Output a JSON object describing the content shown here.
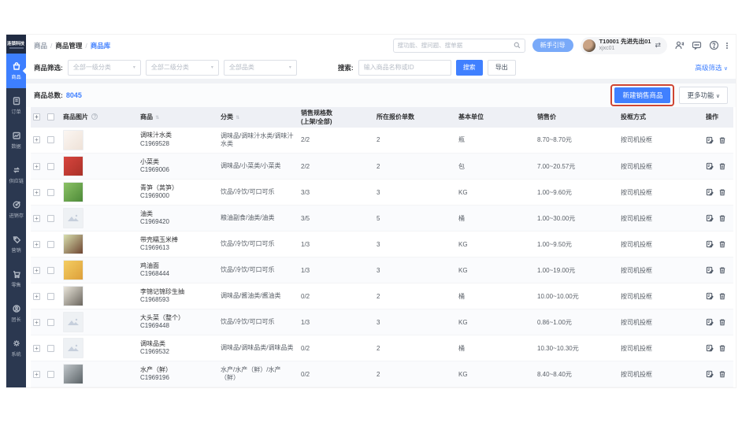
{
  "brand": {
    "name": "连锁科技"
  },
  "sidebar": {
    "items": [
      {
        "icon": "bag-icon",
        "label": "商品",
        "active": true
      },
      {
        "icon": "order-icon",
        "label": "订单",
        "active": false
      },
      {
        "icon": "data-icon",
        "label": "数据",
        "active": false
      },
      {
        "icon": "supply-icon",
        "label": "供应链",
        "active": false
      },
      {
        "icon": "stock-icon",
        "label": "进销存",
        "active": false
      },
      {
        "icon": "tag-icon",
        "label": "营销",
        "active": false
      },
      {
        "icon": "cart-icon",
        "label": "零售",
        "active": false
      },
      {
        "icon": "person-icon",
        "label": "团长",
        "active": false
      },
      {
        "icon": "gear-icon",
        "label": "系统",
        "active": false
      }
    ]
  },
  "breadcrumb": {
    "items": [
      "商品",
      "商品管理",
      "商品库"
    ]
  },
  "topbar": {
    "search_placeholder": "搜功能、搜问题、搜单据",
    "guide_button": "新手引导",
    "user": {
      "name": "T10001 先进先出01",
      "account": "xjxc01"
    }
  },
  "filters": {
    "label": "商品筛选:",
    "selects": [
      "全部一级分类",
      "全部二级分类",
      "全部品类"
    ],
    "search_label": "搜索:",
    "search_placeholder": "输入商品名称或ID",
    "search_button": "搜索",
    "export_button": "导出",
    "advanced_link": "高级筛选"
  },
  "summary": {
    "total_label": "商品总数:",
    "total": "8045",
    "create_button": "新建销售商品",
    "more_button": "更多功能"
  },
  "table": {
    "columns": {
      "image": "商品图片",
      "product": "商品",
      "category": "分类",
      "specs_line1": "销售规格数",
      "specs_line2": "(上架/全部)",
      "quotes": "所在报价单数",
      "unit": "基本单位",
      "price": "销售价",
      "basket": "投框方式",
      "ops": "操作"
    },
    "rows": [
      {
        "name": "调味汁水类",
        "code": "C1969528",
        "category": "调味品/调味汁水类/调味汁水类",
        "specs": "2/2",
        "quotes": "2",
        "unit": "瓶",
        "price": "8.70~8.70元",
        "basket": "按司机投框",
        "thumb": {
          "kind": "photo",
          "c1": "#fbf6f2",
          "c2": "#efe2d8"
        }
      },
      {
        "name": "小菜类",
        "code": "C1969006",
        "category": "调味品/小菜类/小菜类",
        "specs": "2/2",
        "quotes": "2",
        "unit": "包",
        "price": "7.00~20.57元",
        "basket": "按司机投框",
        "thumb": {
          "kind": "photo",
          "c1": "#d8453e",
          "c2": "#a93229"
        }
      },
      {
        "name": "青笋（莴笋）",
        "code": "C1969000",
        "category": "饮品/冷饮/可口可乐",
        "specs": "3/3",
        "quotes": "3",
        "unit": "KG",
        "price": "1.00~9.60元",
        "basket": "按司机投框",
        "thumb": {
          "kind": "photo",
          "c1": "#8cc266",
          "c2": "#4d8a38"
        }
      },
      {
        "name": "油类",
        "code": "C1969420",
        "category": "粮油副食/油类/油类",
        "specs": "3/5",
        "quotes": "5",
        "unit": "桶",
        "price": "1.00~30.00元",
        "basket": "按司机投框",
        "thumb": {
          "kind": "placeholder"
        }
      },
      {
        "name": "带壳糯玉米棒",
        "code": "C1969613",
        "category": "饮品/冷饮/可口可乐",
        "specs": "1/3",
        "quotes": "3",
        "unit": "KG",
        "price": "1.00~9.50元",
        "basket": "按司机投框",
        "thumb": {
          "kind": "photo",
          "c1": "#d8dfae",
          "c2": "#6f4632"
        }
      },
      {
        "name": "鸡油面",
        "code": "C1968444",
        "category": "饮品/冷饮/可口可乐",
        "specs": "1/3",
        "quotes": "3",
        "unit": "KG",
        "price": "1.00~19.00元",
        "basket": "按司机投框",
        "thumb": {
          "kind": "photo",
          "c1": "#f4ce62",
          "c2": "#dd9f3a"
        }
      },
      {
        "name": "李锦记锦珍生抽",
        "code": "C1968593",
        "category": "调味品/酱油类/酱油类",
        "specs": "0/2",
        "quotes": "2",
        "unit": "桶",
        "price": "10.00~10.00元",
        "basket": "按司机投框",
        "thumb": {
          "kind": "photo",
          "c1": "#e9e5da",
          "c2": "#6b665e"
        }
      },
      {
        "name": "大头菜（整个）",
        "code": "C1969448",
        "category": "饮品/冷饮/可口可乐",
        "specs": "1/3",
        "quotes": "3",
        "unit": "KG",
        "price": "0.86~1.00元",
        "basket": "按司机投框",
        "thumb": {
          "kind": "placeholder"
        }
      },
      {
        "name": "调味品类",
        "code": "C1969532",
        "category": "调味品/调味品类/调味品类",
        "specs": "0/2",
        "quotes": "2",
        "unit": "桶",
        "price": "10.30~10.30元",
        "basket": "按司机投框",
        "thumb": {
          "kind": "placeholder"
        }
      },
      {
        "name": "水产（鲜）",
        "code": "C1969196",
        "category": "水产/水产（鲜）/水产（鲜）",
        "specs": "0/2",
        "quotes": "2",
        "unit": "KG",
        "price": "8.40~8.40元",
        "basket": "按司机投框",
        "thumb": {
          "kind": "photo",
          "c1": "#c2c8cc",
          "c2": "#5a6266"
        }
      }
    ]
  },
  "colors": {
    "accent_blue": "#3d7fff",
    "link_blue": "#4080ff",
    "sidebar_bg": "#2b3850",
    "annotation_red": "#cf4532",
    "table_header_bg": "#eef0f5"
  }
}
